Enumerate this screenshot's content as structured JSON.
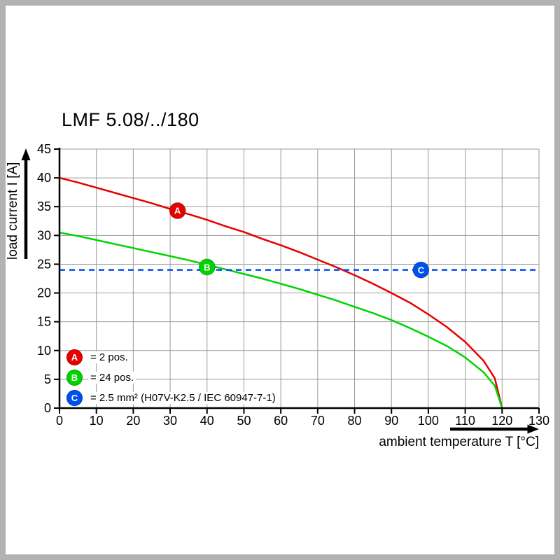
{
  "chart_data": {
    "type": "line",
    "title": "LMF 5.08/../180",
    "xlabel": "ambient temperature T [°C]",
    "ylabel": "load current I [A]",
    "xlim": [
      0,
      130
    ],
    "ylim": [
      0,
      45
    ],
    "xticks": [
      0,
      10,
      20,
      30,
      40,
      50,
      60,
      70,
      80,
      90,
      100,
      110,
      120,
      130
    ],
    "yticks": [
      0,
      5,
      10,
      15,
      20,
      25,
      30,
      35,
      40,
      45
    ],
    "grid": true,
    "legend_position": "bottom-left",
    "colors": {
      "grid": "#9a9a9a",
      "axis": "#000000",
      "frame": "#b2b2b2",
      "background": "#ffffff"
    },
    "series": [
      {
        "name": "A",
        "label": "= 2 pos.",
        "color": "#e60000",
        "x": [
          0,
          5,
          10,
          15,
          20,
          25,
          30,
          35,
          40,
          45,
          50,
          55,
          60,
          65,
          70,
          75,
          80,
          85,
          90,
          95,
          100,
          105,
          110,
          115,
          118,
          120
        ],
        "y": [
          40,
          39.2,
          38.3,
          37.4,
          36.5,
          35.6,
          34.6,
          33.7,
          32.7,
          31.6,
          30.6,
          29.4,
          28.3,
          27.1,
          25.8,
          24.5,
          23.1,
          21.6,
          20,
          18.3,
          16.3,
          14.1,
          11.5,
          8.2,
          5.2,
          0
        ]
      },
      {
        "name": "B",
        "label": "= 24 pos.",
        "color": "#00d400",
        "x": [
          0,
          5,
          10,
          15,
          20,
          25,
          30,
          35,
          40,
          45,
          50,
          55,
          60,
          65,
          70,
          75,
          80,
          85,
          90,
          95,
          100,
          105,
          110,
          115,
          118,
          120
        ],
        "y": [
          30.5,
          29.9,
          29.2,
          28.5,
          27.8,
          27.1,
          26.4,
          25.7,
          24.9,
          24.1,
          23.3,
          22.5,
          21.6,
          20.7,
          19.7,
          18.7,
          17.6,
          16.5,
          15.3,
          13.9,
          12.4,
          10.8,
          8.8,
          6.2,
          3.9,
          0
        ]
      },
      {
        "name": "C",
        "label": "= 2.5 mm² (H07V-K2.5 / IEC 60947-7-1)",
        "color": "#0050f0",
        "style": "dashed-hline",
        "value": 24
      }
    ],
    "markers": [
      {
        "letter": "A",
        "x": 32,
        "y": 34.3
      },
      {
        "letter": "B",
        "x": 40,
        "y": 24.5
      },
      {
        "letter": "C",
        "x": 98,
        "y": 24
      }
    ]
  }
}
